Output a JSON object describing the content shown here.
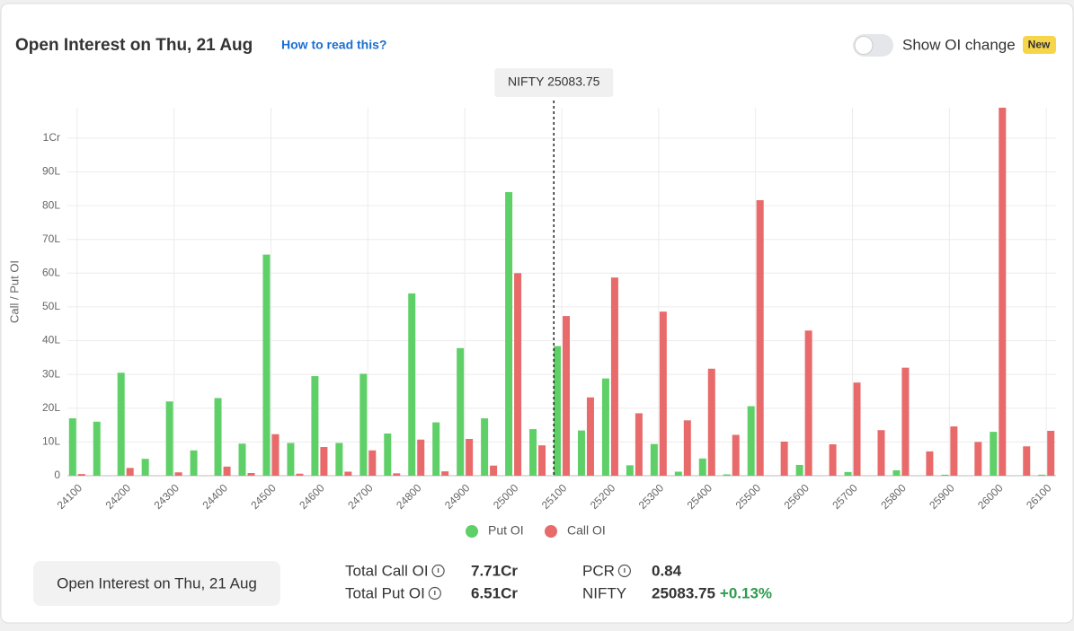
{
  "header": {
    "title": "Open Interest on Thu, 21 Aug",
    "help_link": "How to read this?",
    "toggle_label": "Show OI change",
    "badge": "New"
  },
  "chart_data": {
    "type": "bar",
    "y_label": "Call / Put OI",
    "x": [
      24100,
      24150,
      24200,
      24250,
      24300,
      24350,
      24400,
      24450,
      24500,
      24550,
      24600,
      24650,
      24700,
      24750,
      24800,
      24850,
      24900,
      24950,
      25000,
      25050,
      25100,
      25150,
      25200,
      25250,
      25300,
      25350,
      25400,
      25450,
      25500,
      25550,
      25600,
      25650,
      25700,
      25750,
      25800,
      25850,
      25900,
      25950,
      26000,
      26050,
      26100
    ],
    "xlim": [
      24080,
      26120
    ],
    "xticks": [
      24100,
      24200,
      24300,
      24400,
      24500,
      24600,
      24700,
      24800,
      24900,
      25000,
      25100,
      25200,
      25300,
      25400,
      25500,
      25600,
      25700,
      25800,
      25900,
      26000,
      26100
    ],
    "ylim": [
      0,
      109
    ],
    "yticks": [
      0,
      {
        "value": 10,
        "label": "10L"
      },
      {
        "value": 20,
        "label": "20L"
      },
      {
        "value": 30,
        "label": "30L"
      },
      {
        "value": 40,
        "label": "40L"
      },
      {
        "value": 50,
        "label": "50L"
      },
      {
        "value": 60,
        "label": "60L"
      },
      {
        "value": 70,
        "label": "70L"
      },
      {
        "value": 80,
        "label": "80L"
      },
      {
        "value": 90,
        "label": "90L"
      },
      {
        "value": 100,
        "label": "1Cr"
      }
    ],
    "grid": true,
    "marker": {
      "label": "NIFTY 25083.75",
      "value": 25083.75
    },
    "series": [
      {
        "name": "Put OI",
        "color": "#5fd068",
        "values": [
          17,
          16,
          30.5,
          5,
          22,
          7.5,
          23,
          9.5,
          65.5,
          9.7,
          29.5,
          9.7,
          30.2,
          12.5,
          54,
          15.8,
          37.8,
          17,
          84,
          13.8,
          38.4,
          13.4,
          28.8,
          3.1,
          9.4,
          1.2,
          5.1,
          0.4,
          20.6,
          0,
          3.2,
          0,
          1.1,
          0,
          1.6,
          0,
          0.3,
          0,
          13,
          0,
          0.3
        ]
      },
      {
        "name": "Call OI",
        "color": "#e86a6a",
        "values": [
          0.5,
          0,
          2.3,
          0,
          1,
          0,
          2.7,
          0.8,
          12.3,
          0.6,
          8.5,
          1.2,
          7.5,
          0.7,
          10.7,
          1.3,
          10.9,
          3,
          60,
          9,
          47.3,
          23.2,
          58.7,
          18.5,
          48.6,
          16.4,
          31.7,
          12.1,
          81.6,
          10.1,
          43,
          9.3,
          27.6,
          13.5,
          32,
          7.2,
          14.6,
          10,
          109,
          8.7,
          13.3
        ]
      }
    ]
  },
  "footer": {
    "button": "Open Interest on Thu, 21 Aug",
    "stats": [
      {
        "label": "Total Call OI",
        "value": "7.71Cr"
      },
      {
        "label": "Total Put OI",
        "value": "6.51Cr"
      },
      {
        "label": "PCR",
        "value": "0.84"
      },
      {
        "label": "NIFTY",
        "value": "25083.75",
        "change": "+0.13%"
      }
    ]
  }
}
